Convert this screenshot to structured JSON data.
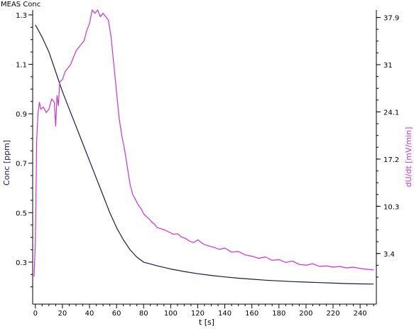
{
  "header": {
    "label": "MEAS Conc"
  },
  "chart_data": {
    "type": "line",
    "title": "",
    "xlabel": "t [s]",
    "ylabel": "Conc [ppm]",
    "y2label": "dU/dt [mV/min]",
    "xlim": [
      -2,
      252
    ],
    "ylim": [
      0.13,
      1.32
    ],
    "y2lim": [
      -4.0,
      39.0
    ],
    "x_ticks": [
      0,
      20,
      40,
      60,
      80,
      100,
      120,
      140,
      160,
      180,
      200,
      220,
      240
    ],
    "y_ticks": [
      0.3,
      0.5,
      0.7,
      0.9,
      1.1,
      1.3
    ],
    "y2_ticks": [
      3.4,
      10.3,
      17.2,
      24.1,
      31,
      37.9
    ],
    "grid": false,
    "colors": {
      "conc": "#1a1a4e",
      "dudt": "#cc33cc",
      "axis": "#000000"
    },
    "series": [
      {
        "axis": "left",
        "x": [
          0,
          5,
          10,
          15,
          20,
          25,
          30,
          35,
          40,
          45,
          50,
          55,
          60,
          65,
          70,
          75,
          80,
          90,
          100,
          110,
          120,
          130,
          140,
          150,
          160,
          170,
          180,
          190,
          200,
          210,
          220,
          230,
          240,
          250
        ],
        "y": [
          1.26,
          1.21,
          1.15,
          1.07,
          0.99,
          0.92,
          0.85,
          0.78,
          0.71,
          0.64,
          0.57,
          0.5,
          0.44,
          0.39,
          0.35,
          0.32,
          0.3,
          0.285,
          0.272,
          0.262,
          0.253,
          0.246,
          0.24,
          0.235,
          0.231,
          0.227,
          0.224,
          0.221,
          0.219,
          0.217,
          0.215,
          0.213,
          0.212,
          0.211
        ]
      },
      {
        "axis": "right",
        "x": [
          -1,
          0,
          1,
          2,
          3,
          4,
          6,
          8,
          10,
          12,
          14,
          15,
          16,
          17,
          18,
          20,
          22,
          24,
          26,
          28,
          30,
          32,
          34,
          36,
          38,
          40,
          42,
          44,
          46,
          48,
          50,
          52,
          54,
          56,
          58,
          60,
          62,
          64,
          66,
          68,
          70,
          72,
          74,
          76,
          78,
          80,
          82,
          84,
          86,
          88,
          90,
          93,
          96,
          99,
          102,
          105,
          108,
          111,
          114,
          117,
          120,
          124,
          128,
          132,
          136,
          140,
          145,
          150,
          155,
          160,
          165,
          170,
          175,
          180,
          185,
          190,
          195,
          200,
          205,
          210,
          215,
          220,
          225,
          230,
          235,
          240,
          245,
          250
        ],
        "y": [
          0.0,
          5.0,
          20.0,
          24.0,
          25.5,
          24.5,
          24.8,
          24.0,
          24.5,
          26.0,
          25.5,
          22.0,
          26.5,
          25.0,
          28.5,
          28.8,
          30.0,
          30.5,
          31.0,
          32.0,
          33.0,
          33.5,
          34.0,
          34.5,
          36.0,
          37.0,
          39.0,
          38.5,
          39.0,
          38.0,
          38.5,
          38.0,
          37.5,
          35.0,
          31.0,
          27.0,
          23.0,
          20.5,
          18.5,
          16.0,
          13.5,
          12.0,
          11.3,
          10.5,
          10.0,
          9.2,
          8.8,
          8.5,
          8.0,
          7.7,
          7.2,
          7.0,
          6.8,
          6.5,
          6.2,
          6.3,
          5.8,
          5.6,
          5.2,
          5.0,
          5.4,
          4.8,
          4.5,
          4.3,
          4.0,
          4.2,
          3.6,
          3.7,
          3.2,
          3.0,
          2.7,
          2.9,
          2.4,
          2.5,
          2.1,
          2.3,
          1.8,
          1.7,
          1.9,
          1.5,
          1.6,
          1.4,
          1.5,
          1.3,
          1.4,
          1.2,
          1.1,
          1.0
        ]
      }
    ]
  }
}
